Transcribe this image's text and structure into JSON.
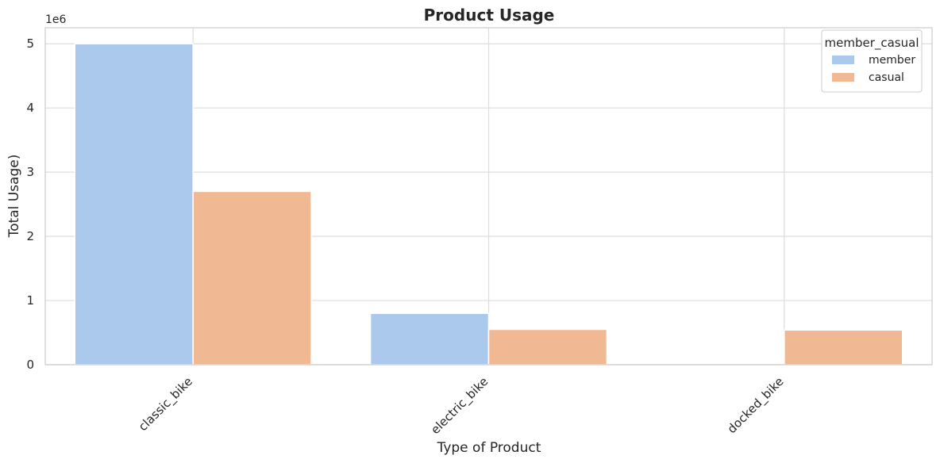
{
  "chart_data": {
    "type": "bar",
    "title": "Product Usage",
    "xlabel": "Type of Product",
    "ylabel": "Total Usage)",
    "y_offset_label": "1e6",
    "categories": [
      "classic_bike",
      "electric_bike",
      "docked_bike"
    ],
    "series": [
      {
        "name": "member",
        "values": [
          5000000,
          800000,
          0
        ],
        "color": "#abc9ed"
      },
      {
        "name": "casual",
        "values": [
          2700000,
          550000,
          540000
        ],
        "color": "#f0b994"
      }
    ],
    "ylim": [
      0,
      5250000
    ],
    "yticks": [
      0,
      1000000,
      2000000,
      3000000,
      4000000,
      5000000
    ],
    "ytick_labels": [
      "0",
      "1",
      "2",
      "3",
      "4",
      "5"
    ],
    "grid": true,
    "legend": {
      "title": "member_casual",
      "placement": "top-right"
    }
  }
}
